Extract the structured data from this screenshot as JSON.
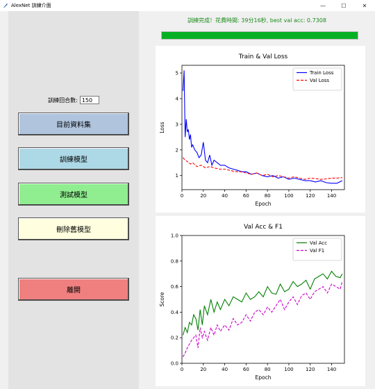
{
  "window": {
    "title": "AlexNet 訓練介面",
    "controls": {
      "minimize": "—",
      "maximize": "☐",
      "close": "✕"
    }
  },
  "status": {
    "message": "訓練完成！花費時間: 39分16秒, best val acc: 0.7308",
    "progress": 1.0,
    "color": "#1a8a1a"
  },
  "left_panel": {
    "epochs_label": "訓練回合數:",
    "epochs_value": "150",
    "buttons": [
      {
        "label": "目前資料集",
        "color": "#b0c4de"
      },
      {
        "label": "訓練模型",
        "color": "#add8e6"
      },
      {
        "label": "測試模型",
        "color": "#90ee90"
      },
      {
        "label": "刪除舊模型",
        "color": "#ffffe0"
      },
      {
        "label": "離開",
        "color": "#f08080"
      }
    ]
  },
  "chart_data": [
    {
      "type": "line",
      "title": "Train & Val Loss",
      "xlabel": "Epoch",
      "ylabel": "Loss",
      "xlim": [
        0,
        152
      ],
      "ylim": [
        0.45,
        5.3
      ],
      "xticks": [
        0,
        20,
        40,
        60,
        80,
        100,
        120,
        140
      ],
      "yticks": [
        1,
        2,
        3,
        4,
        5
      ],
      "legend": "top-right",
      "series": [
        {
          "name": "Train Loss",
          "color": "#0000ff",
          "style": "solid",
          "x": [
            1,
            2,
            3,
            4,
            5,
            6,
            7,
            8,
            9,
            10,
            12,
            14,
            16,
            18,
            20,
            22,
            24,
            26,
            28,
            30,
            33,
            36,
            40,
            44,
            48,
            52,
            56,
            60,
            65,
            70,
            75,
            80,
            85,
            90,
            95,
            100,
            105,
            110,
            115,
            120,
            125,
            130,
            135,
            140,
            145,
            150
          ],
          "y": [
            4.3,
            5.1,
            2.5,
            3.2,
            2.7,
            2.8,
            2.4,
            2.6,
            2.1,
            2.2,
            2.0,
            1.9,
            1.7,
            1.8,
            2.3,
            1.6,
            1.5,
            1.8,
            1.4,
            1.6,
            1.5,
            1.4,
            1.4,
            1.3,
            1.25,
            1.2,
            1.15,
            1.15,
            1.05,
            1.1,
            1.0,
            0.95,
            1.0,
            0.9,
            0.95,
            0.85,
            0.9,
            0.85,
            0.8,
            0.8,
            0.75,
            0.8,
            0.72,
            0.7,
            0.7,
            0.8
          ]
        },
        {
          "name": "Val Loss",
          "color": "#ff0000",
          "style": "dashed",
          "x": [
            1,
            3,
            5,
            8,
            10,
            14,
            18,
            22,
            26,
            30,
            35,
            40,
            45,
            50,
            55,
            60,
            65,
            70,
            75,
            80,
            85,
            90,
            95,
            100,
            105,
            110,
            115,
            120,
            125,
            130,
            135,
            140,
            145,
            150
          ],
          "y": [
            1.7,
            1.6,
            1.55,
            1.45,
            1.5,
            1.35,
            1.4,
            1.3,
            1.35,
            1.3,
            1.25,
            1.25,
            1.2,
            1.15,
            1.15,
            1.1,
            1.05,
            1.1,
            1.0,
            1.05,
            0.95,
            1.0,
            0.95,
            0.9,
            0.95,
            0.9,
            0.85,
            0.9,
            0.88,
            0.85,
            0.87,
            0.9,
            0.9,
            0.92
          ]
        }
      ]
    },
    {
      "type": "line",
      "title": "Val Acc & F1",
      "xlabel": "Epoch",
      "ylabel": "Score",
      "xlim": [
        0,
        152
      ],
      "ylim": [
        0.0,
        1.0
      ],
      "xticks": [
        0,
        20,
        40,
        60,
        80,
        100,
        120,
        140
      ],
      "yticks": [
        0.0,
        0.2,
        0.4,
        0.6,
        0.8,
        1.0
      ],
      "legend": "top-right",
      "series": [
        {
          "name": "Val Acc",
          "color": "#008000",
          "style": "solid",
          "x": [
            1,
            3,
            5,
            7,
            9,
            11,
            13,
            15,
            17,
            19,
            21,
            24,
            27,
            30,
            33,
            36,
            40,
            44,
            48,
            52,
            56,
            60,
            64,
            68,
            72,
            76,
            80,
            84,
            88,
            92,
            96,
            100,
            104,
            108,
            112,
            116,
            120,
            124,
            128,
            132,
            136,
            140,
            144,
            148,
            150
          ],
          "y": [
            0.22,
            0.28,
            0.24,
            0.32,
            0.3,
            0.38,
            0.35,
            0.26,
            0.42,
            0.3,
            0.45,
            0.38,
            0.5,
            0.4,
            0.48,
            0.42,
            0.5,
            0.45,
            0.52,
            0.5,
            0.48,
            0.55,
            0.5,
            0.52,
            0.56,
            0.52,
            0.6,
            0.55,
            0.54,
            0.62,
            0.56,
            0.58,
            0.64,
            0.6,
            0.62,
            0.65,
            0.58,
            0.66,
            0.68,
            0.7,
            0.66,
            0.72,
            0.68,
            0.67,
            0.7
          ]
        },
        {
          "name": "Val F1",
          "color": "#cc00cc",
          "style": "dashed",
          "x": [
            1,
            3,
            5,
            7,
            9,
            11,
            13,
            15,
            17,
            19,
            21,
            24,
            27,
            30,
            33,
            36,
            40,
            44,
            48,
            52,
            56,
            60,
            64,
            68,
            72,
            76,
            80,
            84,
            88,
            92,
            96,
            100,
            104,
            108,
            112,
            116,
            120,
            124,
            128,
            132,
            136,
            140,
            144,
            148,
            150
          ],
          "y": [
            0.05,
            0.08,
            0.12,
            0.15,
            0.18,
            0.2,
            0.22,
            0.12,
            0.28,
            0.2,
            0.25,
            0.18,
            0.28,
            0.22,
            0.3,
            0.25,
            0.3,
            0.26,
            0.35,
            0.3,
            0.32,
            0.38,
            0.33,
            0.4,
            0.42,
            0.38,
            0.44,
            0.4,
            0.45,
            0.5,
            0.42,
            0.48,
            0.52,
            0.46,
            0.53,
            0.55,
            0.5,
            0.56,
            0.58,
            0.6,
            0.55,
            0.62,
            0.6,
            0.58,
            0.64
          ]
        }
      ]
    }
  ]
}
